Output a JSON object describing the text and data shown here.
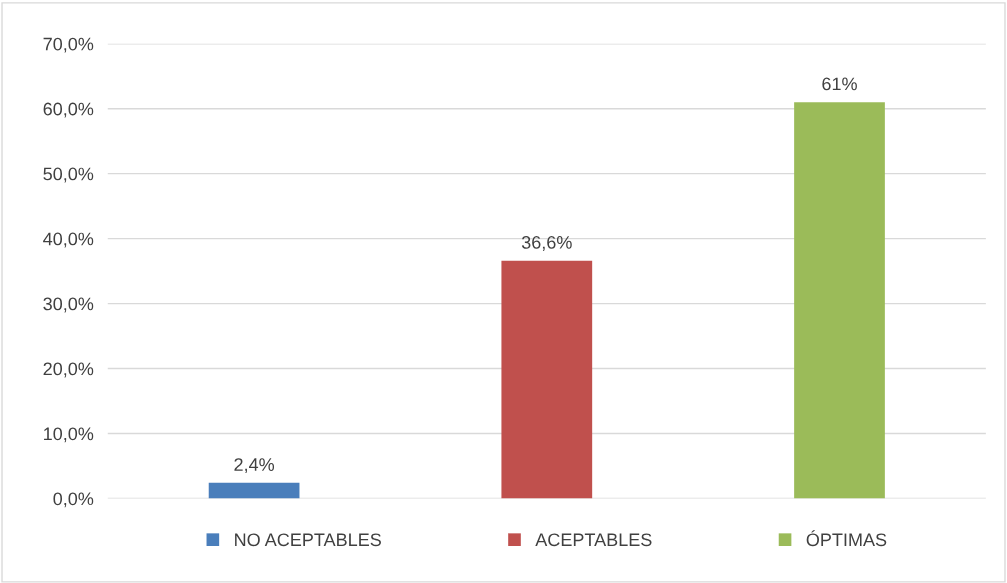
{
  "chart_data": {
    "type": "bar",
    "categories": [
      null,
      null,
      null
    ],
    "series": [
      {
        "name": "NO ACEPTABLES",
        "color": "#4a7ebb",
        "values": [
          2.4,
          null,
          null
        ],
        "value_labels": [
          "2,4%",
          null,
          null
        ]
      },
      {
        "name": "ACEPTABLES",
        "color": "#c0504d",
        "values": [
          null,
          36.6,
          null
        ],
        "value_labels": [
          null,
          "36,6%",
          null
        ]
      },
      {
        "name": "ÓPTIMAS",
        "color": "#9bbb59",
        "values": [
          null,
          null,
          61
        ],
        "value_labels": [
          null,
          null,
          "61%"
        ]
      }
    ],
    "ylim": [
      0,
      70
    ],
    "yticks": [
      {
        "value": 0,
        "label": "0,0%"
      },
      {
        "value": 10,
        "label": "10,0%"
      },
      {
        "value": 20,
        "label": "20,0%"
      },
      {
        "value": 30,
        "label": "30,0%"
      },
      {
        "value": 40,
        "label": "40,0%"
      },
      {
        "value": 50,
        "label": "50,0%"
      },
      {
        "value": 60,
        "label": "60,0%"
      },
      {
        "value": 70,
        "label": "70,0%"
      }
    ],
    "grid": "y",
    "legend": "bottom"
  }
}
